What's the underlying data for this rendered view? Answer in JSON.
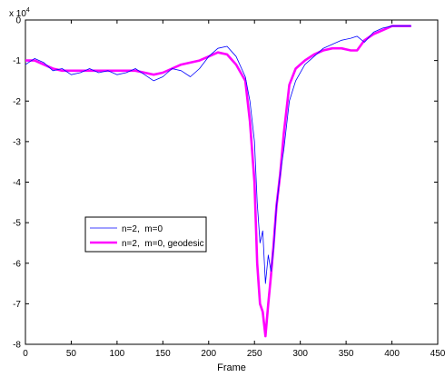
{
  "chart_data": {
    "type": "line",
    "title": "",
    "xlabel": "Frame",
    "ylabel": "",
    "xlim": [
      0,
      450
    ],
    "ylim": [
      -80000,
      0
    ],
    "y_exponent_label": "x 10",
    "y_exponent_power": "4",
    "x_ticks": [
      0,
      50,
      100,
      150,
      200,
      250,
      300,
      350,
      400,
      450
    ],
    "x_tick_labels": [
      "0",
      "50",
      "100",
      "150",
      "200",
      "250",
      "300",
      "350",
      "400",
      "450"
    ],
    "y_ticks": [
      0,
      -10000,
      -20000,
      -30000,
      -40000,
      -50000,
      -60000,
      -70000,
      -80000
    ],
    "y_tick_labels": [
      "0",
      "-1",
      "-2",
      "-3",
      "-4",
      "-5",
      "-6",
      "-7",
      "-8"
    ],
    "grid": false,
    "legend_position": "lower-left",
    "series": [
      {
        "name": "n=2,  m=0",
        "color": "#0000ff",
        "style": "thin",
        "x": [
          0,
          10,
          20,
          30,
          40,
          50,
          60,
          70,
          80,
          90,
          100,
          110,
          120,
          130,
          140,
          150,
          160,
          170,
          180,
          190,
          200,
          210,
          220,
          230,
          240,
          245,
          250,
          253,
          256,
          259,
          262,
          265,
          268,
          271,
          274,
          278,
          282,
          288,
          295,
          305,
          315,
          325,
          335,
          345,
          355,
          362,
          370,
          380,
          390,
          400,
          410,
          421
        ],
        "y": [
          -11000,
          -9500,
          -10500,
          -12500,
          -12000,
          -13500,
          -13000,
          -12000,
          -13000,
          -12500,
          -13500,
          -13000,
          -12000,
          -13500,
          -15000,
          -14000,
          -12000,
          -12500,
          -14000,
          -12000,
          -9000,
          -7000,
          -6500,
          -9000,
          -14000,
          -20000,
          -30000,
          -45000,
          -55000,
          -52000,
          -65000,
          -58000,
          -62000,
          -56000,
          -46000,
          -38000,
          -32000,
          -20000,
          -15000,
          -11000,
          -9000,
          -7000,
          -6000,
          -5000,
          -4500,
          -4000,
          -5500,
          -3000,
          -2000,
          -1500,
          -1500,
          -1500
        ]
      },
      {
        "name": "n=2,  m=0, geodesic",
        "color": "#ff00ff",
        "style": "thick",
        "x": [
          0,
          10,
          20,
          30,
          40,
          50,
          60,
          70,
          80,
          90,
          100,
          110,
          120,
          130,
          140,
          150,
          160,
          170,
          180,
          190,
          200,
          210,
          220,
          230,
          240,
          245,
          250,
          253,
          256,
          259,
          262,
          265,
          268,
          271,
          274,
          278,
          282,
          288,
          295,
          305,
          315,
          325,
          335,
          345,
          355,
          362,
          370,
          380,
          390,
          400,
          410,
          421
        ],
        "y": [
          -10000,
          -10000,
          -11000,
          -12000,
          -12500,
          -12500,
          -12500,
          -12500,
          -12500,
          -12500,
          -12500,
          -12500,
          -12500,
          -13000,
          -13500,
          -13000,
          -12000,
          -11000,
          -10500,
          -10000,
          -9000,
          -8000,
          -8500,
          -11000,
          -15000,
          -25000,
          -40000,
          -60000,
          -70000,
          -72000,
          -78000,
          -70000,
          -63000,
          -55000,
          -46000,
          -38000,
          -28000,
          -16000,
          -12000,
          -10000,
          -8500,
          -7500,
          -7000,
          -7000,
          -7500,
          -7500,
          -5000,
          -3500,
          -2500,
          -1500,
          -1500,
          -1500
        ]
      }
    ]
  }
}
